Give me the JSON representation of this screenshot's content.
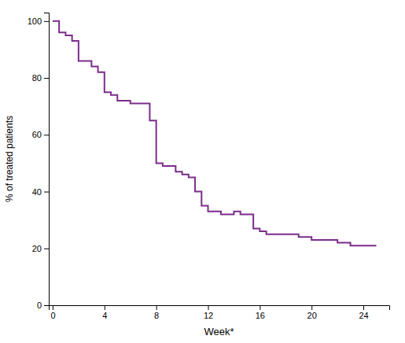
{
  "chart_data": {
    "type": "step",
    "xlabel": "Week*",
    "ylabel": "% of treated patients",
    "color": "#7B2D8B",
    "x": [
      0,
      0.5,
      1,
      1.5,
      2,
      3,
      3.5,
      4,
      4.5,
      5,
      6,
      7,
      7.5,
      8,
      8.5,
      9,
      9.5,
      10,
      10.5,
      11,
      11.5,
      12,
      12.5,
      13,
      14,
      14.5,
      15,
      15.5,
      16,
      16.5,
      17,
      18,
      19,
      20,
      20.5,
      21,
      22,
      23,
      24,
      25
    ],
    "values": [
      100,
      96,
      95,
      93,
      86,
      84,
      82,
      75,
      74,
      72,
      71,
      71,
      65,
      50,
      49,
      49,
      47,
      46,
      45,
      40,
      35,
      33,
      33,
      32,
      33,
      32,
      32,
      27,
      26,
      25,
      25,
      25,
      24,
      23,
      23,
      23,
      22,
      21,
      21,
      21
    ],
    "xlim": [
      -0.3,
      26
    ],
    "ylim": [
      0,
      103
    ],
    "xticks": [
      0,
      4,
      8,
      12,
      16,
      20,
      24
    ],
    "yticks": [
      0,
      20,
      40,
      60,
      80,
      100
    ],
    "grid": false
  }
}
